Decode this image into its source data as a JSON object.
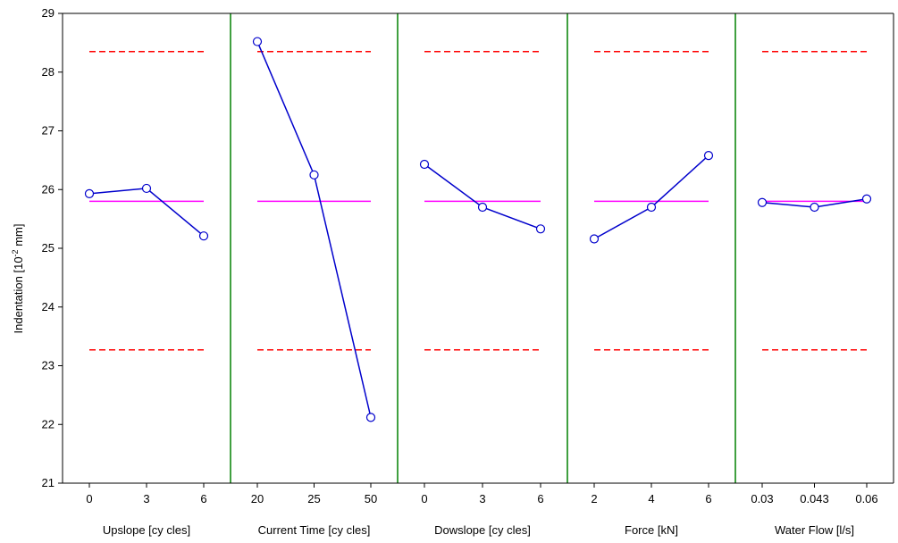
{
  "chart_data": {
    "type": "line",
    "ylabel": {
      "main": "Indentation [10",
      "sup": "-2",
      "tail": " mm]"
    },
    "ylim": [
      21,
      29
    ],
    "yticks": [
      "21",
      "22",
      "23",
      "24",
      "25",
      "26",
      "27",
      "28",
      "29"
    ],
    "grid": false,
    "reference_lines": {
      "mean": 25.8,
      "upper_limit": 28.35,
      "lower_limit": 23.27
    },
    "colors": {
      "series": "#0000cc",
      "mean": "#ff00ff",
      "limits": "#ff0000",
      "dividers": "#008000",
      "axis": "#000000"
    },
    "panels": [
      {
        "label": "Upslope [cy cles]",
        "categories": [
          "0",
          "3",
          "6"
        ],
        "values": [
          25.93,
          26.02,
          25.21
        ]
      },
      {
        "label": "Current Time  [cy cles]",
        "categories": [
          "20",
          "25",
          "50"
        ],
        "values": [
          28.52,
          26.25,
          22.12
        ]
      },
      {
        "label": "Dowslope [cy cles]",
        "categories": [
          "0",
          "3",
          "6"
        ],
        "values": [
          26.43,
          25.7,
          25.33
        ]
      },
      {
        "label": "Force [kN]",
        "categories": [
          "2",
          "4",
          "6"
        ],
        "values": [
          25.16,
          25.7,
          26.58
        ]
      },
      {
        "label": "Water Flow [l/s]",
        "categories": [
          "0.03",
          "0.043",
          "0.06"
        ],
        "values": [
          25.78,
          25.7,
          25.84
        ]
      }
    ]
  }
}
